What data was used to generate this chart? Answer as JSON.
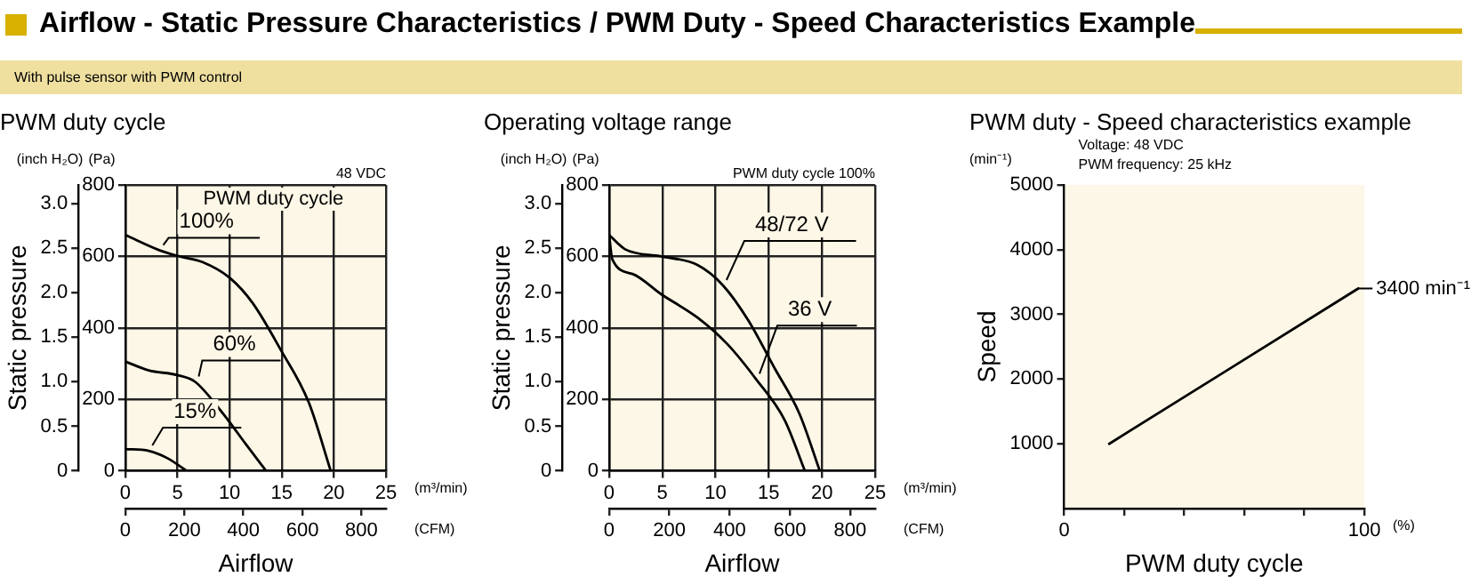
{
  "chart_data": [
    {
      "type": "other",
      "title": "Airflow - Static Pressure Characteristics / PWM Duty - Speed Characteristics Example",
      "subtitle": "With pulse sensor with PWM control"
    },
    {
      "type": "line",
      "title": "PWM duty cycle",
      "xlabel": "Airflow",
      "ylabel": "Static pressure",
      "y2label": "(Pa)",
      "x2label": "(CFM)",
      "xlim": [
        0,
        25
      ],
      "xticks": [
        0,
        5,
        10,
        15,
        20,
        25
      ],
      "x2lim": [
        0,
        883
      ],
      "x2ticks": [
        0,
        200,
        400,
        600,
        800
      ],
      "y2lim": [
        0,
        800
      ],
      "y2ticks": [
        0,
        200,
        400,
        600,
        800
      ],
      "ylim": [
        0,
        3.21
      ],
      "yticks": [
        0,
        0.5,
        {
          "value": 1,
          "label": "1.0"
        },
        1.5,
        {
          "value": 2,
          "label": "2.0"
        },
        2.5,
        {
          "value": 3,
          "label": "3.0"
        }
      ],
      "grid": true,
      "legend": false,
      "marker": "none",
      "line_style": "solid",
      "annotations": [
        "(inch H₂O)",
        "(m³/min)",
        "48 VDC",
        "PWM duty cycle"
      ],
      "series": [
        {
          "name": "100%",
          "color": "#000000",
          "axis": "y2",
          "x": [
            0,
            3.3,
            5.2,
            7.4,
            10.1,
            12.2,
            14.9,
            17.6,
            19.7
          ],
          "values": [
            660,
            617,
            600,
            584,
            538,
            470,
            339,
            191,
            0
          ]
        },
        {
          "name": "60%",
          "color": "#000000",
          "axis": "y2",
          "x": [
            0,
            2.25,
            5,
            6.7,
            9.4,
            11.5,
            13.5
          ],
          "values": [
            306,
            281,
            268,
            249,
            159,
            77,
            0
          ]
        },
        {
          "name": "15%",
          "color": "#000000",
          "axis": "y2",
          "x": [
            0,
            2.25,
            4,
            5.9
          ],
          "values": [
            61,
            56,
            36,
            0
          ]
        }
      ]
    },
    {
      "type": "line",
      "title": "Operating voltage range",
      "xlabel": "Airflow",
      "ylabel": "Static pressure",
      "y2label": "(Pa)",
      "x2label": "(CFM)",
      "xlim": [
        0,
        25
      ],
      "xticks": [
        0,
        5,
        10,
        15,
        20,
        25
      ],
      "x2lim": [
        0,
        883
      ],
      "x2ticks": [
        0,
        200,
        400,
        600,
        800
      ],
      "y2lim": [
        0,
        800
      ],
      "y2ticks": [
        0,
        200,
        400,
        600,
        800
      ],
      "ylim": [
        0,
        3.21
      ],
      "yticks": [
        0,
        0.5,
        {
          "value": 1,
          "label": "1.0"
        },
        1.5,
        {
          "value": 2,
          "label": "2.0"
        },
        2.5,
        {
          "value": 3,
          "label": "3.0"
        }
      ],
      "grid": true,
      "legend": false,
      "marker": "none",
      "line_style": "solid",
      "annotations": [
        "(inch H₂O)",
        "(m³/min)",
        "PWM duty cycle 100%"
      ],
      "series": [
        {
          "name": "48/72 V",
          "color": "#000000",
          "axis": "y2",
          "x": [
            0,
            1.5,
            4.9,
            8.3,
            10.7,
            13.1,
            15.5,
            17.9,
            19.8
          ],
          "values": [
            660,
            620,
            600,
            576,
            519,
            420,
            290,
            159,
            0
          ]
        },
        {
          "name": "36 V",
          "color": "#000000",
          "axis": "y2",
          "x": [
            0,
            0.3,
            2.2,
            4.9,
            8.3,
            11.1,
            13.8,
            16.5,
            18.4
          ],
          "values": [
            660,
            592,
            551,
            494,
            429,
            355,
            257,
            142,
            0
          ]
        }
      ]
    },
    {
      "type": "line",
      "title": "PWM duty - Speed characteristics example",
      "xlabel": "PWM duty cycle",
      "ylabel": "Speed",
      "xlim": [
        0,
        100
      ],
      "xticks": [
        0,
        {
          "value": 20,
          "label": null
        },
        {
          "value": 40,
          "label": null
        },
        {
          "value": 60,
          "label": null
        },
        {
          "value": 80,
          "label": null
        },
        100
      ],
      "ylim": [
        0,
        5000
      ],
      "yticks": [
        1000,
        2000,
        3000,
        4000,
        5000
      ],
      "grid": false,
      "legend": false,
      "marker": "none",
      "line_style": "solid",
      "annotations": [
        "(min⁻¹)",
        "(%)",
        "Voltage: 48 VDC",
        "PWM frequency: 25 kHz"
      ],
      "series": [
        {
          "color": "#000000",
          "x": [
            15,
            98
          ],
          "values": [
            1000,
            3400
          ],
          "value_labels": [
            null,
            "3400 min⁻¹"
          ]
        }
      ]
    }
  ]
}
